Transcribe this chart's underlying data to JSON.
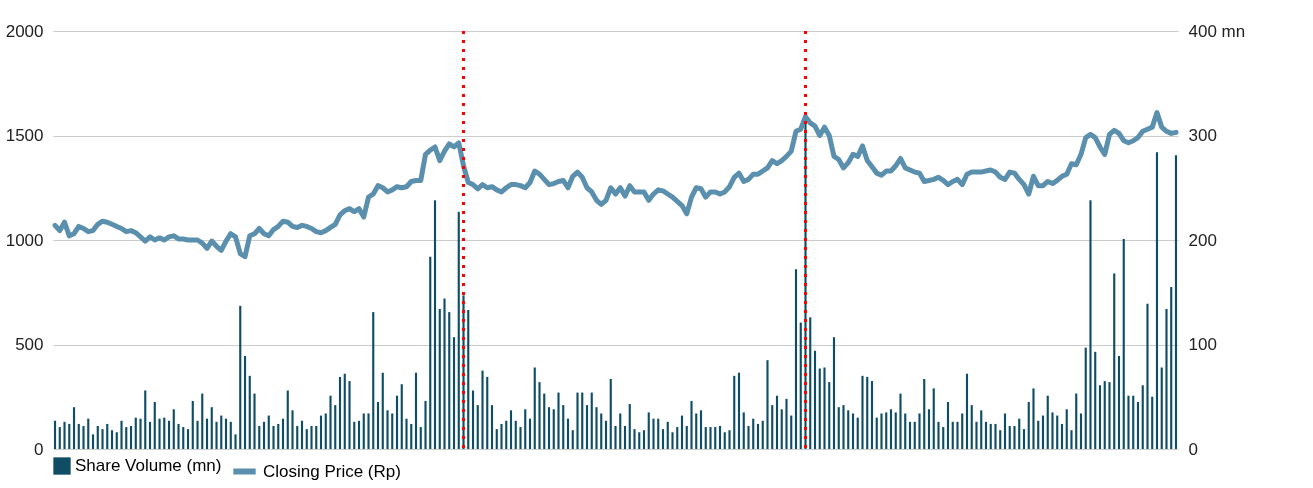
{
  "chart_data": {
    "type": "bar",
    "categories": [
      null,
      null,
      null,
      null,
      null,
      null,
      null,
      null,
      null,
      null,
      null,
      null,
      null,
      null,
      null,
      null,
      null,
      null,
      null,
      null,
      null,
      null,
      null,
      null,
      null,
      null,
      null,
      null,
      null,
      null,
      null,
      null,
      null,
      null,
      null,
      null,
      null,
      null,
      null,
      null,
      null,
      null,
      null,
      null,
      null,
      null,
      null,
      null,
      null,
      null,
      null,
      null,
      null,
      null,
      null,
      null,
      null,
      null,
      null,
      null,
      null,
      null,
      null,
      null,
      null,
      null,
      null,
      null,
      null,
      null,
      null,
      null,
      null,
      null,
      null,
      null,
      null,
      null,
      null,
      null,
      null,
      null,
      null,
      null,
      null,
      null,
      null,
      null,
      null,
      null,
      null,
      null,
      null,
      null,
      null,
      null,
      null,
      null,
      null,
      null,
      null,
      null,
      null,
      null,
      null,
      null,
      null,
      null,
      null,
      null,
      null,
      null,
      null,
      null,
      null,
      null,
      null,
      null,
      null,
      null,
      null,
      null,
      null,
      null,
      null,
      null,
      null,
      null,
      null,
      null,
      null,
      null,
      null,
      null,
      null,
      null,
      null,
      null,
      null,
      null,
      null,
      null,
      null,
      null,
      null,
      null,
      null,
      null,
      null,
      null,
      null,
      null,
      null,
      null,
      null,
      null,
      null,
      null,
      null,
      null,
      null,
      null,
      null,
      null,
      null,
      null,
      null,
      null,
      null,
      null,
      null,
      null,
      null,
      null,
      null,
      null,
      null,
      null,
      null,
      null,
      null,
      null,
      null,
      null,
      null,
      null,
      null,
      null,
      null,
      null,
      null,
      null,
      null,
      null,
      null,
      null,
      null,
      null,
      null,
      null,
      null,
      null,
      null,
      null,
      null,
      null,
      null,
      null,
      null,
      null,
      null,
      null,
      null,
      null,
      null,
      null,
      null,
      null,
      null,
      null,
      null,
      null,
      null,
      null,
      null,
      null,
      null,
      null,
      null,
      null,
      null,
      null,
      null,
      null,
      null,
      null,
      null
    ],
    "series": [
      {
        "name": "Share Volume (mn)",
        "axis": "y2",
        "color": "#0e4d64",
        "values": [
          27,
          21,
          26,
          24,
          40,
          24,
          22,
          29,
          14,
          22,
          19,
          24,
          18,
          16,
          27,
          21,
          22,
          30,
          29,
          56,
          26,
          45,
          29,
          30,
          27,
          38,
          24,
          21,
          19,
          46,
          27,
          53,
          29,
          40,
          26,
          32,
          29,
          26,
          14,
          137,
          89,
          70,
          53,
          22,
          26,
          32,
          22,
          24,
          29,
          56,
          37,
          22,
          27,
          19,
          22,
          22,
          32,
          34,
          51,
          42,
          69,
          72,
          65,
          26,
          27,
          34,
          34,
          131,
          45,
          73,
          37,
          34,
          51,
          62,
          29,
          24,
          73,
          21,
          46,
          184,
          238,
          134,
          144,
          131,
          107,
          227,
          147,
          133,
          56,
          42,
          75,
          69,
          42,
          19,
          24,
          27,
          37,
          27,
          21,
          38,
          29,
          78,
          64,
          53,
          40,
          38,
          54,
          42,
          29,
          18,
          54,
          54,
          42,
          54,
          40,
          34,
          27,
          67,
          22,
          34,
          22,
          43,
          19,
          16,
          18,
          35,
          29,
          29,
          19,
          26,
          16,
          21,
          32,
          22,
          46,
          34,
          37,
          21,
          21,
          21,
          22,
          16,
          18,
          70,
          73,
          35,
          22,
          29,
          24,
          27,
          85,
          42,
          51,
          38,
          48,
          32,
          172,
          121,
          313,
          126,
          94,
          77,
          78,
          64,
          107,
          40,
          42,
          37,
          34,
          30,
          70,
          69,
          65,
          30,
          34,
          35,
          38,
          35,
          53,
          34,
          26,
          26,
          34,
          67,
          38,
          58,
          26,
          21,
          45,
          26,
          26,
          34,
          72,
          42,
          26,
          37,
          26,
          24,
          24,
          18,
          34,
          22,
          22,
          29,
          19,
          45,
          58,
          27,
          32,
          51,
          35,
          32,
          24,
          38,
          18,
          53,
          34,
          97,
          238,
          93,
          61,
          65,
          64,
          168,
          89,
          201,
          51,
          51,
          45,
          61,
          139,
          50,
          284,
          78,
          134,
          155,
          281
        ]
      },
      {
        "name": "Closing Price (Rp)",
        "type": "line",
        "color": "#5b8fae",
        "values": [
          1070,
          1045,
          1085,
          1020,
          1030,
          1065,
          1055,
          1040,
          1045,
          1075,
          1090,
          1085,
          1075,
          1065,
          1055,
          1040,
          1045,
          1035,
          1015,
          995,
          1015,
          1000,
          1010,
          1000,
          1015,
          1020,
          1005,
          1005,
          1000,
          1000,
          1000,
          985,
          960,
          995,
          970,
          950,
          995,
          1030,
          1015,
          935,
          920,
          1020,
          1030,
          1055,
          1030,
          1020,
          1050,
          1065,
          1090,
          1085,
          1065,
          1060,
          1070,
          1065,
          1055,
          1040,
          1035,
          1045,
          1060,
          1075,
          1120,
          1140,
          1150,
          1135,
          1150,
          1110,
          1205,
          1220,
          1260,
          1250,
          1230,
          1240,
          1255,
          1250,
          1255,
          1280,
          1285,
          1285,
          1410,
          1430,
          1445,
          1380,
          1425,
          1460,
          1445,
          1465,
          1355,
          1275,
          1265,
          1245,
          1265,
          1250,
          1255,
          1240,
          1230,
          1250,
          1265,
          1265,
          1260,
          1250,
          1275,
          1330,
          1315,
          1290,
          1265,
          1270,
          1280,
          1285,
          1250,
          1305,
          1325,
          1300,
          1250,
          1230,
          1190,
          1170,
          1190,
          1250,
          1220,
          1250,
          1210,
          1260,
          1230,
          1230,
          1230,
          1190,
          1220,
          1240,
          1235,
          1220,
          1205,
          1185,
          1165,
          1125,
          1205,
          1250,
          1245,
          1205,
          1230,
          1230,
          1220,
          1230,
          1255,
          1300,
          1320,
          1280,
          1290,
          1315,
          1315,
          1330,
          1345,
          1380,
          1365,
          1380,
          1400,
          1425,
          1520,
          1530,
          1590,
          1560,
          1545,
          1500,
          1540,
          1500,
          1400,
          1385,
          1345,
          1370,
          1410,
          1400,
          1450,
          1380,
          1350,
          1320,
          1310,
          1330,
          1330,
          1355,
          1390,
          1345,
          1335,
          1325,
          1320,
          1280,
          1285,
          1290,
          1300,
          1285,
          1265,
          1280,
          1290,
          1265,
          1315,
          1325,
          1325,
          1325,
          1330,
          1335,
          1325,
          1300,
          1290,
          1325,
          1320,
          1290,
          1265,
          1220,
          1305,
          1260,
          1260,
          1280,
          1270,
          1285,
          1305,
          1315,
          1365,
          1360,
          1410,
          1490,
          1505,
          1490,
          1445,
          1410,
          1505,
          1525,
          1510,
          1475,
          1465,
          1475,
          1490,
          1520,
          1530,
          1540,
          1610,
          1540,
          1520,
          1510,
          1515
        ]
      }
    ],
    "ylim": [
      0,
      2000
    ],
    "yticks": [
      0,
      500,
      1000,
      1500,
      2000
    ],
    "y2lim": [
      0,
      400
    ],
    "y2ticks": [
      0,
      100,
      200,
      300,
      {
        "value": 400,
        "label": "400 mn"
      }
    ],
    "grid": "y",
    "legend": "bottom",
    "line_style": "solid",
    "marker": "none"
  }
}
